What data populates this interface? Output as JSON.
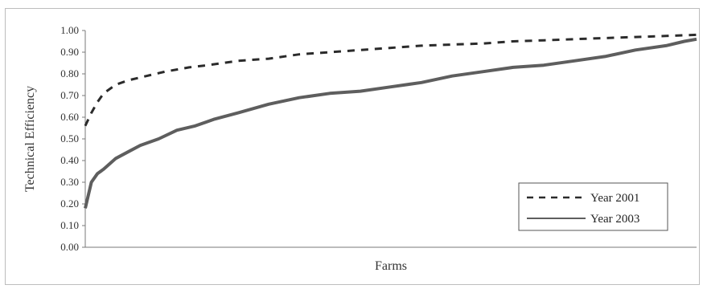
{
  "chart_data": {
    "type": "line",
    "title": "",
    "xlabel": "Farms",
    "ylabel": "Technical Efficiency",
    "ylim": [
      0,
      1
    ],
    "yticks": [
      "0.00",
      "0.10",
      "0.20",
      "0.30",
      "0.40",
      "0.50",
      "0.60",
      "0.70",
      "0.80",
      "0.90",
      "1.00"
    ],
    "xlim": [
      0,
      100
    ],
    "grid": false,
    "legend_position": "bottom-right",
    "series": [
      {
        "name": "Year 2001",
        "style": "dashed",
        "color": "#2b2b2b",
        "x": [
          0,
          1,
          2,
          3,
          5,
          7,
          10,
          13,
          17,
          20,
          25,
          30,
          35,
          40,
          45,
          50,
          55,
          60,
          65,
          70,
          75,
          80,
          85,
          90,
          95,
          100
        ],
        "y": [
          0.56,
          0.62,
          0.67,
          0.71,
          0.75,
          0.77,
          0.79,
          0.81,
          0.83,
          0.84,
          0.86,
          0.87,
          0.89,
          0.9,
          0.91,
          0.92,
          0.93,
          0.935,
          0.94,
          0.95,
          0.955,
          0.96,
          0.965,
          0.97,
          0.975,
          0.98
        ]
      },
      {
        "name": "Year 2003",
        "style": "solid",
        "color": "#5e5e5e",
        "x": [
          0,
          0.5,
          1,
          2,
          3,
          5,
          7,
          9,
          12,
          15,
          18,
          21,
          25,
          30,
          35,
          40,
          45,
          50,
          55,
          60,
          65,
          70,
          75,
          80,
          85,
          90,
          95,
          98,
          100
        ],
        "y": [
          0.18,
          0.24,
          0.3,
          0.34,
          0.36,
          0.41,
          0.44,
          0.47,
          0.5,
          0.54,
          0.56,
          0.59,
          0.62,
          0.66,
          0.69,
          0.71,
          0.72,
          0.74,
          0.76,
          0.79,
          0.81,
          0.83,
          0.84,
          0.86,
          0.88,
          0.91,
          0.93,
          0.95,
          0.96
        ]
      }
    ]
  }
}
